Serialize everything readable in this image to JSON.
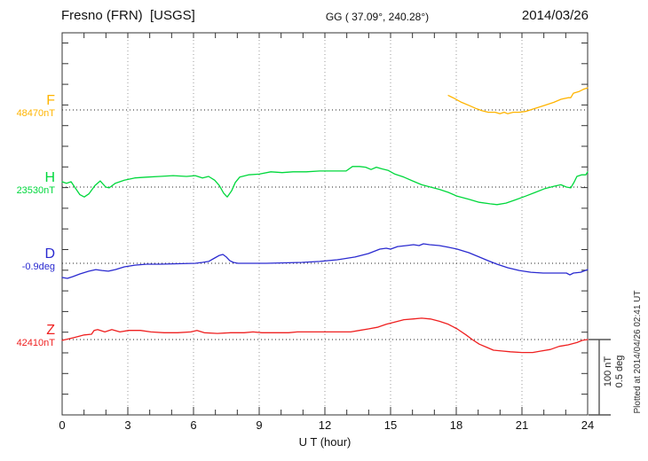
{
  "header": {
    "station": "Fresno (FRN)  [USGS]",
    "coords": "GG ( 37.09°, 240.28°)",
    "date": "2014/03/26"
  },
  "footer_note": "Plotted at 2014/04/26 02:41 UT",
  "scale_bar": {
    "label_nt": "100 nT",
    "label_deg": "0.5 deg"
  },
  "chart_data": {
    "type": "line",
    "x_label": "U T (hour)",
    "x_range": [
      0,
      24
    ],
    "x_ticks": [
      0,
      3,
      6,
      9,
      12,
      15,
      18,
      21,
      24
    ],
    "grid": "dotted vertical gridlines every 3 hours; dotted horizontal baseline per channel",
    "legend_position": "left margin channel labels",
    "scale": {
      "nT_per_division": 100,
      "deg_per_division": 0.5
    },
    "series": [
      {
        "name": "F",
        "unit": "nT",
        "baseline": 48470,
        "baseline_label": "48470nT",
        "color": "#ffb400",
        "points": [
          [
            17.64,
            48489
          ],
          [
            17.92,
            48485
          ],
          [
            18.24,
            48480
          ],
          [
            18.57,
            48476
          ],
          [
            18.89,
            48472
          ],
          [
            19.18,
            48469
          ],
          [
            19.46,
            48467
          ],
          [
            19.78,
            48467
          ],
          [
            19.99,
            48465
          ],
          [
            20.19,
            48467
          ],
          [
            20.35,
            48465
          ],
          [
            20.6,
            48467
          ],
          [
            20.88,
            48467
          ],
          [
            21.16,
            48468
          ],
          [
            21.49,
            48471
          ],
          [
            21.81,
            48474
          ],
          [
            22.14,
            48477
          ],
          [
            22.46,
            48480
          ],
          [
            22.78,
            48484
          ],
          [
            23.11,
            48486
          ],
          [
            23.23,
            48486
          ],
          [
            23.35,
            48492
          ],
          [
            23.59,
            48494
          ],
          [
            23.8,
            48497
          ],
          [
            24,
            48499
          ]
        ]
      },
      {
        "name": "H",
        "unit": "nT",
        "baseline": 23530,
        "baseline_label": "23530nT",
        "color": "#00d83c",
        "points": [
          [
            0,
            23537
          ],
          [
            0.2,
            23535
          ],
          [
            0.41,
            23537
          ],
          [
            0.57,
            23530
          ],
          [
            0.81,
            23520
          ],
          [
            1.01,
            23517
          ],
          [
            1.22,
            23521
          ],
          [
            1.5,
            23532
          ],
          [
            1.74,
            23538
          ],
          [
            1.99,
            23530
          ],
          [
            2.15,
            23529
          ],
          [
            2.43,
            23535
          ],
          [
            2.84,
            23539
          ],
          [
            3.32,
            23542
          ],
          [
            3.85,
            23543
          ],
          [
            4.46,
            23544
          ],
          [
            5.07,
            23545
          ],
          [
            5.68,
            23544
          ],
          [
            6.08,
            23545
          ],
          [
            6.41,
            23542
          ],
          [
            6.69,
            23544
          ],
          [
            6.97,
            23539
          ],
          [
            7.18,
            23532
          ],
          [
            7.38,
            23522
          ],
          [
            7.54,
            23517
          ],
          [
            7.74,
            23525
          ],
          [
            7.91,
            23536
          ],
          [
            8.11,
            23543
          ],
          [
            8.51,
            23546
          ],
          [
            9,
            23547
          ],
          [
            9.53,
            23550
          ],
          [
            10.05,
            23549
          ],
          [
            10.54,
            23550
          ],
          [
            11.15,
            23550
          ],
          [
            11.76,
            23551
          ],
          [
            12.36,
            23551
          ],
          [
            12.97,
            23551
          ],
          [
            13.26,
            23557
          ],
          [
            13.58,
            23557
          ],
          [
            13.86,
            23556
          ],
          [
            14.11,
            23553
          ],
          [
            14.35,
            23556
          ],
          [
            14.59,
            23554
          ],
          [
            14.88,
            23552
          ],
          [
            15.2,
            23547
          ],
          [
            15.61,
            23543
          ],
          [
            16.01,
            23538
          ],
          [
            16.42,
            23533
          ],
          [
            16.82,
            23530
          ],
          [
            17.23,
            23527
          ],
          [
            17.64,
            23523
          ],
          [
            18.04,
            23518
          ],
          [
            18.57,
            23514
          ],
          [
            19.05,
            23510
          ],
          [
            19.54,
            23508
          ],
          [
            19.86,
            23507
          ],
          [
            20.27,
            23509
          ],
          [
            20.68,
            23513
          ],
          [
            21.16,
            23518
          ],
          [
            21.61,
            23523
          ],
          [
            22.05,
            23528
          ],
          [
            22.46,
            23531
          ],
          [
            22.78,
            23533
          ],
          [
            23.03,
            23530
          ],
          [
            23.23,
            23529
          ],
          [
            23.39,
            23537
          ],
          [
            23.51,
            23544
          ],
          [
            23.72,
            23546
          ],
          [
            23.92,
            23546
          ],
          [
            24,
            23550
          ]
        ]
      },
      {
        "name": "D",
        "unit": "deg",
        "baseline": -0.9,
        "baseline_label": "-0.9deg",
        "color": "#2a2ad0",
        "points": [
          [
            0,
            -0.993
          ],
          [
            0.24,
            -0.999
          ],
          [
            0.49,
            -0.987
          ],
          [
            0.81,
            -0.97
          ],
          [
            1.22,
            -0.952
          ],
          [
            1.54,
            -0.941
          ],
          [
            1.82,
            -0.947
          ],
          [
            2.11,
            -0.952
          ],
          [
            2.43,
            -0.941
          ],
          [
            2.84,
            -0.923
          ],
          [
            3.32,
            -0.912
          ],
          [
            3.85,
            -0.906
          ],
          [
            4.46,
            -0.906
          ],
          [
            5.27,
            -0.903
          ],
          [
            6.08,
            -0.9
          ],
          [
            6.41,
            -0.894
          ],
          [
            6.69,
            -0.888
          ],
          [
            6.97,
            -0.865
          ],
          [
            7.18,
            -0.848
          ],
          [
            7.34,
            -0.842
          ],
          [
            7.5,
            -0.859
          ],
          [
            7.66,
            -0.883
          ],
          [
            7.82,
            -0.894
          ],
          [
            8.03,
            -0.9
          ],
          [
            8.51,
            -0.9
          ],
          [
            9.32,
            -0.9
          ],
          [
            10.14,
            -0.897
          ],
          [
            10.95,
            -0.894
          ],
          [
            11.76,
            -0.888
          ],
          [
            12.57,
            -0.877
          ],
          [
            13.38,
            -0.859
          ],
          [
            13.99,
            -0.836
          ],
          [
            14.51,
            -0.807
          ],
          [
            14.8,
            -0.801
          ],
          [
            15,
            -0.807
          ],
          [
            15.32,
            -0.79
          ],
          [
            15.73,
            -0.784
          ],
          [
            16.05,
            -0.778
          ],
          [
            16.3,
            -0.784
          ],
          [
            16.5,
            -0.772
          ],
          [
            16.78,
            -0.778
          ],
          [
            17.23,
            -0.784
          ],
          [
            17.64,
            -0.795
          ],
          [
            18.04,
            -0.807
          ],
          [
            18.57,
            -0.83
          ],
          [
            19.05,
            -0.859
          ],
          [
            19.46,
            -0.883
          ],
          [
            19.86,
            -0.906
          ],
          [
            20.35,
            -0.929
          ],
          [
            20.88,
            -0.947
          ],
          [
            21.41,
            -0.959
          ],
          [
            21.97,
            -0.964
          ],
          [
            22.5,
            -0.964
          ],
          [
            23.03,
            -0.964
          ],
          [
            23.19,
            -0.976
          ],
          [
            23.35,
            -0.964
          ],
          [
            23.68,
            -0.959
          ],
          [
            24,
            -0.941
          ]
        ]
      },
      {
        "name": "Z",
        "unit": "nT",
        "baseline": 42410,
        "baseline_label": "42410nT",
        "color": "#ef2020",
        "points": [
          [
            0,
            42409
          ],
          [
            0.32,
            42411
          ],
          [
            0.61,
            42413
          ],
          [
            1.01,
            42416
          ],
          [
            1.34,
            42417
          ],
          [
            1.46,
            42422
          ],
          [
            1.62,
            42423
          ],
          [
            1.95,
            42420
          ],
          [
            2.27,
            42423
          ],
          [
            2.64,
            42420
          ],
          [
            3.04,
            42422
          ],
          [
            3.57,
            42422
          ],
          [
            4.05,
            42420
          ],
          [
            4.66,
            42419
          ],
          [
            5.27,
            42419
          ],
          [
            5.88,
            42420
          ],
          [
            6.16,
            42422
          ],
          [
            6.49,
            42419
          ],
          [
            7.09,
            42418
          ],
          [
            7.7,
            42419
          ],
          [
            8.31,
            42419
          ],
          [
            8.72,
            42420
          ],
          [
            9.12,
            42419
          ],
          [
            9.73,
            42419
          ],
          [
            10.34,
            42419
          ],
          [
            10.74,
            42420
          ],
          [
            11.35,
            42420
          ],
          [
            11.96,
            42420
          ],
          [
            12.57,
            42420
          ],
          [
            13.18,
            42420
          ],
          [
            13.58,
            42422
          ],
          [
            13.99,
            42424
          ],
          [
            14.39,
            42426
          ],
          [
            14.8,
            42430
          ],
          [
            15.2,
            42433
          ],
          [
            15.61,
            42436
          ],
          [
            16.01,
            42437
          ],
          [
            16.42,
            42438
          ],
          [
            16.82,
            42437
          ],
          [
            17.23,
            42434
          ],
          [
            17.64,
            42430
          ],
          [
            18.04,
            42424
          ],
          [
            18.45,
            42416
          ],
          [
            18.73,
            42410
          ],
          [
            19.05,
            42404
          ],
          [
            19.38,
            42400
          ],
          [
            19.7,
            42396
          ],
          [
            20.07,
            42395
          ],
          [
            20.47,
            42394
          ],
          [
            21,
            42393
          ],
          [
            21.49,
            42393
          ],
          [
            21.89,
            42395
          ],
          [
            22.3,
            42397
          ],
          [
            22.7,
            42401
          ],
          [
            23.11,
            42403
          ],
          [
            23.51,
            42406
          ],
          [
            23.76,
            42409
          ],
          [
            24,
            42410
          ]
        ]
      }
    ]
  }
}
